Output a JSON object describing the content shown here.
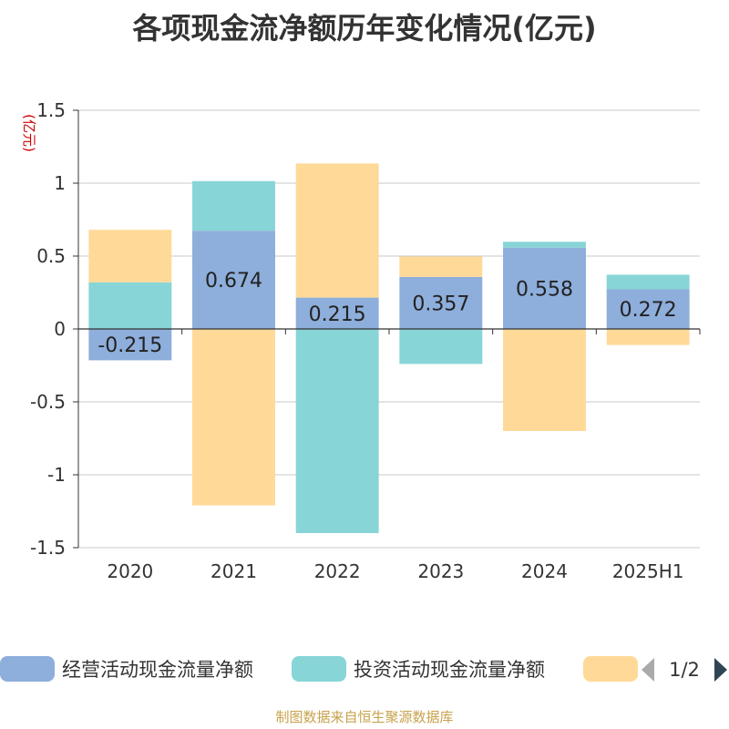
{
  "title": "各项现金流净额历年变化情况(亿元)",
  "source": "制图数据来自恒生聚源数据库",
  "chart_data": {
    "type": "bar",
    "stacked": true,
    "title": "各项现金流净额历年变化情况(亿元)",
    "ylabel": "(亿元)",
    "ylim": [
      -1.5,
      1.5
    ],
    "yticks": [
      -1.5,
      -1,
      -0.5,
      0,
      0.5,
      1,
      1.5
    ],
    "ytick_labels": [
      "-1.5",
      "-1",
      "-0.5",
      "0",
      "0.5",
      "1",
      "1.5"
    ],
    "grid": true,
    "legend_position": "bottom",
    "categories": [
      "2020",
      "2021",
      "2022",
      "2023",
      "2024",
      "2025H1"
    ],
    "series": [
      {
        "name": "经营活动现金流量净额",
        "color": "#8eaedb",
        "values": [
          -0.215,
          0.674,
          0.215,
          0.357,
          0.558,
          0.272
        ],
        "labels": [
          "-0.215",
          "0.674",
          "0.215",
          "0.357",
          "0.558",
          "0.272"
        ]
      },
      {
        "name": "投资活动现金流量净额",
        "color": "#87d5d7",
        "values": [
          0.32,
          0.34,
          -1.4,
          -0.24,
          0.04,
          0.1
        ]
      },
      {
        "name": "",
        "color": "#ffd998",
        "values": [
          0.36,
          -1.21,
          0.92,
          0.14,
          -0.7,
          -0.11
        ]
      }
    ],
    "legend_pager": "1/2"
  }
}
